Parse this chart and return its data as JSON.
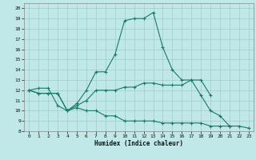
{
  "xlabel": "Humidex (Indice chaleur)",
  "bg_color": "#c0e8e8",
  "grid_color": "#a0cccc",
  "line_color": "#1a7a6a",
  "xlim": [
    -0.5,
    23.5
  ],
  "ylim": [
    8,
    20.5
  ],
  "yticks": [
    8,
    9,
    10,
    11,
    12,
    13,
    14,
    15,
    16,
    17,
    18,
    19,
    20
  ],
  "xticks": [
    0,
    1,
    2,
    3,
    4,
    5,
    6,
    7,
    8,
    9,
    10,
    11,
    12,
    13,
    14,
    15,
    16,
    17,
    18,
    19,
    20,
    21,
    22,
    23
  ],
  "line1_x": [
    0,
    1,
    2,
    3,
    4,
    5,
    6,
    7,
    8,
    9,
    10,
    11,
    12,
    13,
    14,
    15,
    16,
    17,
    18,
    19,
    20,
    21
  ],
  "line1_y": [
    12,
    12.2,
    12.2,
    10.5,
    10,
    10.7,
    12,
    13.8,
    13.8,
    15.5,
    18.8,
    19.0,
    19.0,
    19.6,
    16.2,
    14.0,
    13.0,
    13.0,
    11.5,
    10.0,
    9.5,
    8.5
  ],
  "line2_x": [
    0,
    1,
    2,
    3,
    4,
    5,
    6,
    7,
    8,
    9,
    10,
    11,
    12,
    13,
    14,
    15,
    16,
    17,
    18,
    19
  ],
  "line2_y": [
    12,
    11.7,
    11.7,
    11.7,
    10,
    10.5,
    11,
    12,
    12,
    12.0,
    12.3,
    12.3,
    12.7,
    12.7,
    12.5,
    12.5,
    12.5,
    13.0,
    13.0,
    11.5
  ],
  "line3_x": [
    0,
    1,
    2,
    3,
    4,
    5,
    6,
    7,
    8,
    9,
    10,
    11,
    12,
    13,
    14,
    15,
    16,
    17,
    18,
    19,
    20,
    21,
    22,
    23
  ],
  "line3_y": [
    12,
    11.7,
    11.7,
    11.7,
    10,
    10.3,
    10,
    10,
    9.5,
    9.5,
    9.0,
    9.0,
    9.0,
    9.0,
    8.8,
    8.8,
    8.8,
    8.8,
    8.8,
    8.5,
    8.5,
    8.5,
    8.5,
    8.3
  ]
}
